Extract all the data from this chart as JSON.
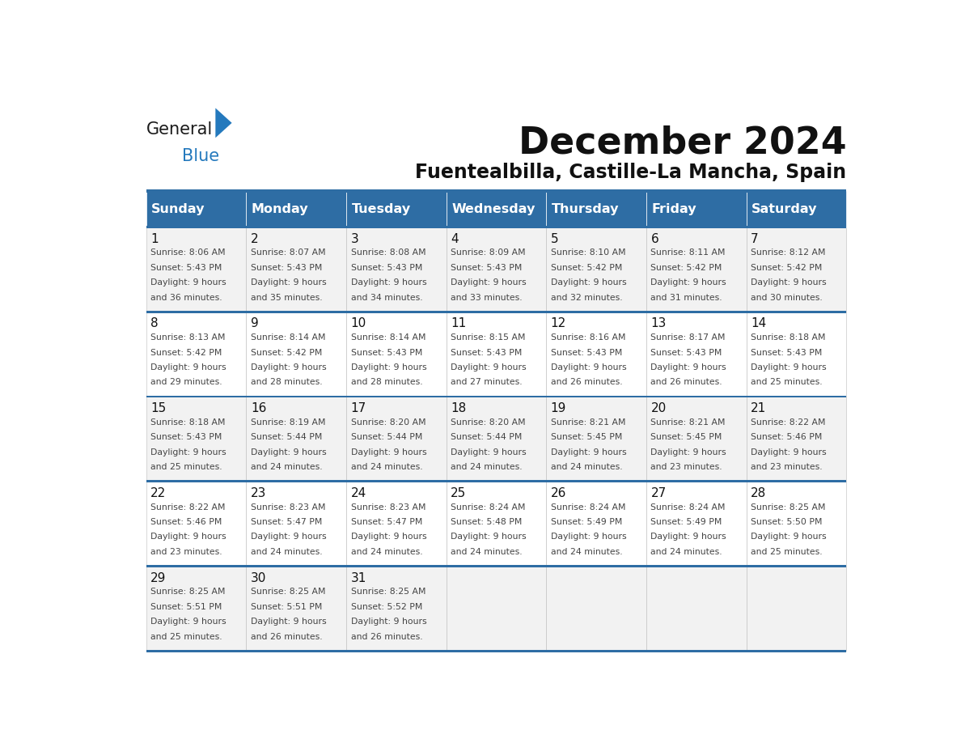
{
  "title": "December 2024",
  "subtitle": "Fuentealbilla, Castille-La Mancha, Spain",
  "header_color": "#2E6DA4",
  "header_text_color": "#FFFFFF",
  "cell_bg_even": "#F2F2F2",
  "cell_bg_odd": "#FFFFFF",
  "text_color": "#333333",
  "days_of_week": [
    "Sunday",
    "Monday",
    "Tuesday",
    "Wednesday",
    "Thursday",
    "Friday",
    "Saturday"
  ],
  "calendar_data": [
    [
      {
        "day": 1,
        "sunrise": "8:06 AM",
        "sunset": "5:43 PM",
        "daylight": "9 hours and 36 minutes."
      },
      {
        "day": 2,
        "sunrise": "8:07 AM",
        "sunset": "5:43 PM",
        "daylight": "9 hours and 35 minutes."
      },
      {
        "day": 3,
        "sunrise": "8:08 AM",
        "sunset": "5:43 PM",
        "daylight": "9 hours and 34 minutes."
      },
      {
        "day": 4,
        "sunrise": "8:09 AM",
        "sunset": "5:43 PM",
        "daylight": "9 hours and 33 minutes."
      },
      {
        "day": 5,
        "sunrise": "8:10 AM",
        "sunset": "5:42 PM",
        "daylight": "9 hours and 32 minutes."
      },
      {
        "day": 6,
        "sunrise": "8:11 AM",
        "sunset": "5:42 PM",
        "daylight": "9 hours and 31 minutes."
      },
      {
        "day": 7,
        "sunrise": "8:12 AM",
        "sunset": "5:42 PM",
        "daylight": "9 hours and 30 minutes."
      }
    ],
    [
      {
        "day": 8,
        "sunrise": "8:13 AM",
        "sunset": "5:42 PM",
        "daylight": "9 hours and 29 minutes."
      },
      {
        "day": 9,
        "sunrise": "8:14 AM",
        "sunset": "5:42 PM",
        "daylight": "9 hours and 28 minutes."
      },
      {
        "day": 10,
        "sunrise": "8:14 AM",
        "sunset": "5:43 PM",
        "daylight": "9 hours and 28 minutes."
      },
      {
        "day": 11,
        "sunrise": "8:15 AM",
        "sunset": "5:43 PM",
        "daylight": "9 hours and 27 minutes."
      },
      {
        "day": 12,
        "sunrise": "8:16 AM",
        "sunset": "5:43 PM",
        "daylight": "9 hours and 26 minutes."
      },
      {
        "day": 13,
        "sunrise": "8:17 AM",
        "sunset": "5:43 PM",
        "daylight": "9 hours and 26 minutes."
      },
      {
        "day": 14,
        "sunrise": "8:18 AM",
        "sunset": "5:43 PM",
        "daylight": "9 hours and 25 minutes."
      }
    ],
    [
      {
        "day": 15,
        "sunrise": "8:18 AM",
        "sunset": "5:43 PM",
        "daylight": "9 hours and 25 minutes."
      },
      {
        "day": 16,
        "sunrise": "8:19 AM",
        "sunset": "5:44 PM",
        "daylight": "9 hours and 24 minutes."
      },
      {
        "day": 17,
        "sunrise": "8:20 AM",
        "sunset": "5:44 PM",
        "daylight": "9 hours and 24 minutes."
      },
      {
        "day": 18,
        "sunrise": "8:20 AM",
        "sunset": "5:44 PM",
        "daylight": "9 hours and 24 minutes."
      },
      {
        "day": 19,
        "sunrise": "8:21 AM",
        "sunset": "5:45 PM",
        "daylight": "9 hours and 24 minutes."
      },
      {
        "day": 20,
        "sunrise": "8:21 AM",
        "sunset": "5:45 PM",
        "daylight": "9 hours and 23 minutes."
      },
      {
        "day": 21,
        "sunrise": "8:22 AM",
        "sunset": "5:46 PM",
        "daylight": "9 hours and 23 minutes."
      }
    ],
    [
      {
        "day": 22,
        "sunrise": "8:22 AM",
        "sunset": "5:46 PM",
        "daylight": "9 hours and 23 minutes."
      },
      {
        "day": 23,
        "sunrise": "8:23 AM",
        "sunset": "5:47 PM",
        "daylight": "9 hours and 24 minutes."
      },
      {
        "day": 24,
        "sunrise": "8:23 AM",
        "sunset": "5:47 PM",
        "daylight": "9 hours and 24 minutes."
      },
      {
        "day": 25,
        "sunrise": "8:24 AM",
        "sunset": "5:48 PM",
        "daylight": "9 hours and 24 minutes."
      },
      {
        "day": 26,
        "sunrise": "8:24 AM",
        "sunset": "5:49 PM",
        "daylight": "9 hours and 24 minutes."
      },
      {
        "day": 27,
        "sunrise": "8:24 AM",
        "sunset": "5:49 PM",
        "daylight": "9 hours and 24 minutes."
      },
      {
        "day": 28,
        "sunrise": "8:25 AM",
        "sunset": "5:50 PM",
        "daylight": "9 hours and 25 minutes."
      }
    ],
    [
      {
        "day": 29,
        "sunrise": "8:25 AM",
        "sunset": "5:51 PM",
        "daylight": "9 hours and 25 minutes."
      },
      {
        "day": 30,
        "sunrise": "8:25 AM",
        "sunset": "5:51 PM",
        "daylight": "9 hours and 26 minutes."
      },
      {
        "day": 31,
        "sunrise": "8:25 AM",
        "sunset": "5:52 PM",
        "daylight": "9 hours and 26 minutes."
      },
      null,
      null,
      null,
      null
    ]
  ],
  "logo_color_general": "#1a1a1a",
  "logo_color_blue": "#2479BD"
}
